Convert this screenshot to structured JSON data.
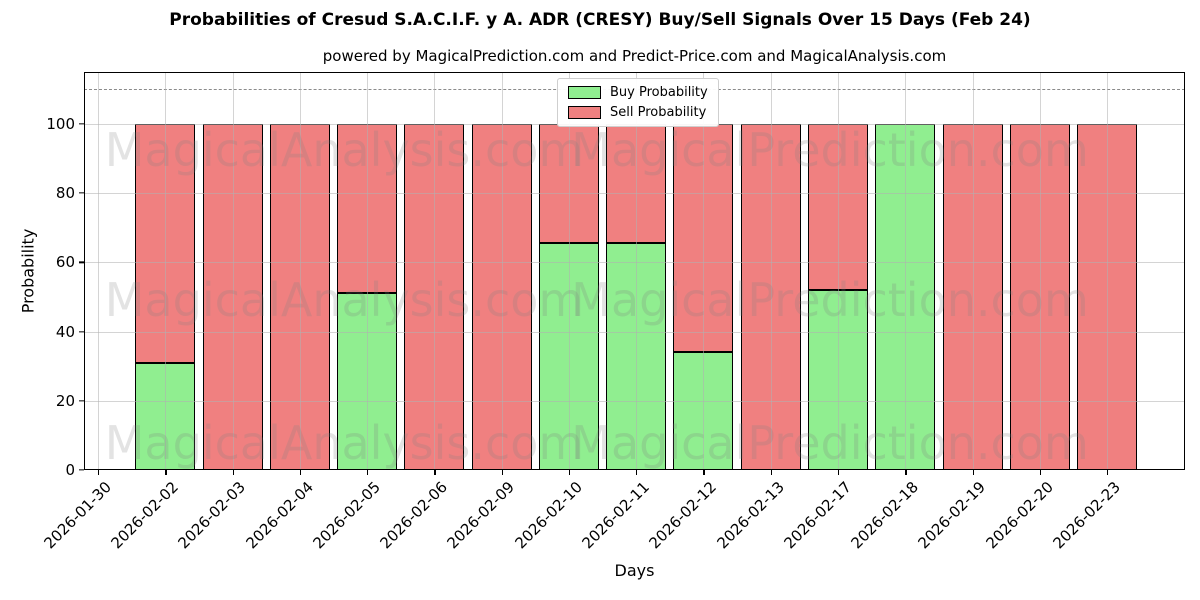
{
  "colors": {
    "buy": "#90ee90",
    "sell": "#f08080",
    "bar_edge": "#000000",
    "grid": "rgba(176,176,176,0.55)",
    "dashed_line": "#8a8a8a",
    "watermark": "rgba(128,128,128,0.22)"
  },
  "watermarks": {
    "left_text": "MagicalAnalysis.com",
    "right_text": "MagicalPrediction.com"
  },
  "chart_data": {
    "type": "bar",
    "stacked": true,
    "title": "Probabilities of Cresud S.A.C.I.F. y A. ADR (CRESY) Buy/Sell Signals Over 15 Days (Feb 24)",
    "subtitle": "powered by MagicalPrediction.com and Predict-Price.com and MagicalAnalysis.com",
    "xlabel": "Days",
    "ylabel": "Probability",
    "ylim": [
      0,
      115
    ],
    "yticks": [
      0,
      20,
      40,
      60,
      80,
      100
    ],
    "dashed_hline": 110,
    "grid": true,
    "legend_position": "upper center",
    "categories": [
      "2026-01-30",
      "2026-02-02",
      "2026-02-03",
      "2026-02-04",
      "2026-02-05",
      "2026-02-06",
      "2026-02-09",
      "2026-02-10",
      "2026-02-11",
      "2026-02-12",
      "2026-02-13",
      "2026-02-17",
      "2026-02-18",
      "2026-02-19",
      "2026-02-20",
      "2026-02-23"
    ],
    "series": [
      {
        "name": "Buy Probability",
        "color": "#90ee90",
        "values": [
          0,
          31,
          0,
          0,
          51,
          0,
          0,
          65.5,
          65.5,
          34,
          0,
          52,
          100,
          0,
          0,
          0
        ]
      },
      {
        "name": "Sell Probability",
        "color": "#f08080",
        "values": [
          0,
          69,
          100,
          100,
          49,
          100,
          100,
          34.5,
          34.5,
          66,
          100,
          48,
          0,
          100,
          100,
          100
        ]
      }
    ]
  }
}
